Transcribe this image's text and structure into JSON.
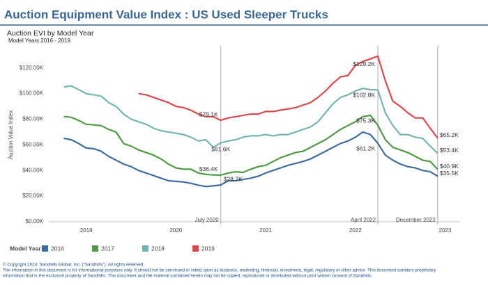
{
  "chart_data": {
    "type": "line",
    "title": "Auction Equipment Value Index : US Used Sleeper Trucks",
    "subtitle": "Auction EVI by Model Year",
    "subtitle2": "Model Years 2016 - 2019",
    "y_label": "Auction Value Index",
    "legend_title": "Model Year",
    "footer": [
      "© Copyright 2023, Sandhills Global, Inc. (\"Sandhills\"). All rights reserved.",
      "The information in this document is for informational purposes only.  It should not be construed or relied upon as business, marketing, financial, investment, legal, regulatory or other advice. This document contains proprietary",
      "information that is the exclusive property of Sandhills. This document and the material contained herein may not be copied, reproduced or distributed without prior written consent of Sandhills."
    ],
    "x": [
      "2018-10",
      "2018-11",
      "2018-12",
      "2019-01",
      "2019-02",
      "2019-03",
      "2019-04",
      "2019-05",
      "2019-06",
      "2019-07",
      "2019-08",
      "2019-09",
      "2019-10",
      "2019-11",
      "2019-12",
      "2020-01",
      "2020-02",
      "2020-03",
      "2020-04",
      "2020-05",
      "2020-06",
      "2020-07",
      "2020-08",
      "2020-09",
      "2020-10",
      "2020-11",
      "2020-12",
      "2021-01",
      "2021-02",
      "2021-03",
      "2021-04",
      "2021-05",
      "2021-06",
      "2021-07",
      "2021-08",
      "2021-09",
      "2021-10",
      "2021-11",
      "2021-12",
      "2022-01",
      "2022-02",
      "2022-03",
      "2022-04",
      "2022-05",
      "2022-06",
      "2022-07",
      "2022-08",
      "2022-09",
      "2022-10",
      "2022-11",
      "2022-12"
    ],
    "xlim": [
      "2018-08",
      "2023-03"
    ],
    "xticks": [
      "2019",
      "2020",
      "2021",
      "2022",
      "2023"
    ],
    "ylim": [
      0,
      135
    ],
    "yticks": [
      {
        "value": 0,
        "label": "$0.00K"
      },
      {
        "value": 20,
        "label": "$20.00K"
      },
      {
        "value": 40,
        "label": "$40.00K"
      },
      {
        "value": 60,
        "label": "$60.00K"
      },
      {
        "value": 80,
        "label": "$80.00K"
      },
      {
        "value": 100,
        "label": "$100.00K"
      },
      {
        "value": 120,
        "label": "$120.00K"
      }
    ],
    "grid": false,
    "reference_lines": [
      {
        "x": "2020-07",
        "label": "July 2020"
      },
      {
        "x": "2022-04",
        "label": "April 2022"
      },
      {
        "x": "2022-12",
        "label": "December 2022"
      }
    ],
    "series": [
      {
        "name": "2016",
        "color": "#3d6d9e",
        "values": [
          65,
          64,
          61,
          57.5,
          57,
          55,
          51,
          48,
          45,
          43,
          40,
          38,
          36,
          34,
          32,
          31.5,
          31,
          30,
          28.5,
          27.5,
          28,
          28.7,
          32,
          32,
          33,
          34,
          35.5,
          38,
          40,
          42,
          44,
          45.5,
          47,
          49,
          52,
          55,
          58,
          61,
          63,
          66,
          70,
          68,
          61.2,
          52,
          48,
          45,
          43,
          42,
          40,
          39,
          35.5
        ],
        "value_labels": [
          null,
          null,
          null,
          null,
          null,
          null,
          null,
          null,
          null,
          null,
          null,
          null,
          null,
          null,
          null,
          null,
          null,
          null,
          null,
          null,
          null,
          "$28.7K",
          null,
          null,
          null,
          null,
          null,
          null,
          null,
          null,
          null,
          null,
          null,
          null,
          null,
          null,
          null,
          null,
          null,
          null,
          null,
          null,
          "$61.2K",
          null,
          null,
          null,
          null,
          null,
          null,
          null,
          "$35.5K"
        ]
      },
      {
        "name": "2017",
        "color": "#4e9a42",
        "values": [
          82,
          81.5,
          79,
          76,
          75.5,
          75,
          72,
          70,
          61,
          59,
          56,
          54,
          52,
          49,
          45,
          42,
          41,
          41,
          38,
          37,
          36.5,
          36.4,
          38,
          39,
          38.5,
          41,
          43,
          44,
          47,
          50,
          52,
          54,
          55,
          58,
          61,
          64,
          68,
          72,
          75,
          78,
          82,
          83,
          75.3,
          64,
          58,
          56,
          54,
          51,
          48,
          47,
          40.9
        ],
        "value_labels": [
          null,
          null,
          null,
          null,
          null,
          null,
          null,
          null,
          null,
          null,
          null,
          null,
          null,
          null,
          null,
          null,
          null,
          null,
          null,
          null,
          null,
          "$36.4K",
          null,
          null,
          null,
          null,
          null,
          null,
          null,
          null,
          null,
          null,
          null,
          null,
          null,
          null,
          null,
          null,
          null,
          null,
          null,
          null,
          "$75.3K",
          null,
          null,
          null,
          null,
          null,
          null,
          null,
          "$40.9K"
        ]
      },
      {
        "name": "2018",
        "color": "#73b5b0",
        "values": [
          105,
          106,
          103,
          100,
          99,
          98,
          93,
          90,
          84,
          80,
          78,
          76,
          73,
          71,
          70,
          69,
          68,
          66,
          63,
          64,
          58,
          61.6,
          63,
          64,
          66,
          67,
          67,
          68,
          67,
          68,
          68,
          70,
          72,
          74,
          78,
          85,
          92,
          97,
          99,
          102,
          104,
          103,
          102.8,
          85,
          75,
          68,
          68,
          66,
          65,
          59,
          53.4
        ],
        "value_labels": [
          null,
          null,
          null,
          null,
          null,
          null,
          null,
          null,
          null,
          null,
          null,
          null,
          null,
          null,
          null,
          null,
          null,
          null,
          null,
          null,
          null,
          "$61.6K",
          null,
          null,
          null,
          null,
          null,
          null,
          null,
          null,
          null,
          null,
          null,
          null,
          null,
          null,
          null,
          null,
          null,
          null,
          null,
          null,
          "$102.8K",
          null,
          null,
          null,
          null,
          null,
          null,
          null,
          "$53.4K"
        ]
      },
      {
        "name": "2019",
        "color": "#d9484a",
        "values": [
          null,
          null,
          null,
          null,
          null,
          null,
          null,
          null,
          null,
          null,
          100,
          99,
          97,
          95,
          93,
          90,
          89,
          87,
          84,
          82,
          82,
          79.1,
          81,
          82,
          83,
          84,
          84,
          86,
          86,
          87,
          88,
          89,
          91,
          93,
          97,
          102,
          108,
          113,
          114,
          122,
          125,
          127,
          129.2,
          110,
          94,
          90,
          85,
          81,
          81,
          73,
          65.2
        ],
        "value_labels": [
          null,
          null,
          null,
          null,
          null,
          null,
          null,
          null,
          null,
          null,
          null,
          null,
          null,
          null,
          null,
          null,
          null,
          null,
          null,
          null,
          null,
          "$79.1K",
          null,
          null,
          null,
          null,
          null,
          null,
          null,
          null,
          null,
          null,
          null,
          null,
          null,
          null,
          null,
          null,
          null,
          null,
          null,
          null,
          "$129.2K",
          null,
          null,
          null,
          null,
          null,
          null,
          null,
          "$65.2K"
        ]
      }
    ]
  }
}
